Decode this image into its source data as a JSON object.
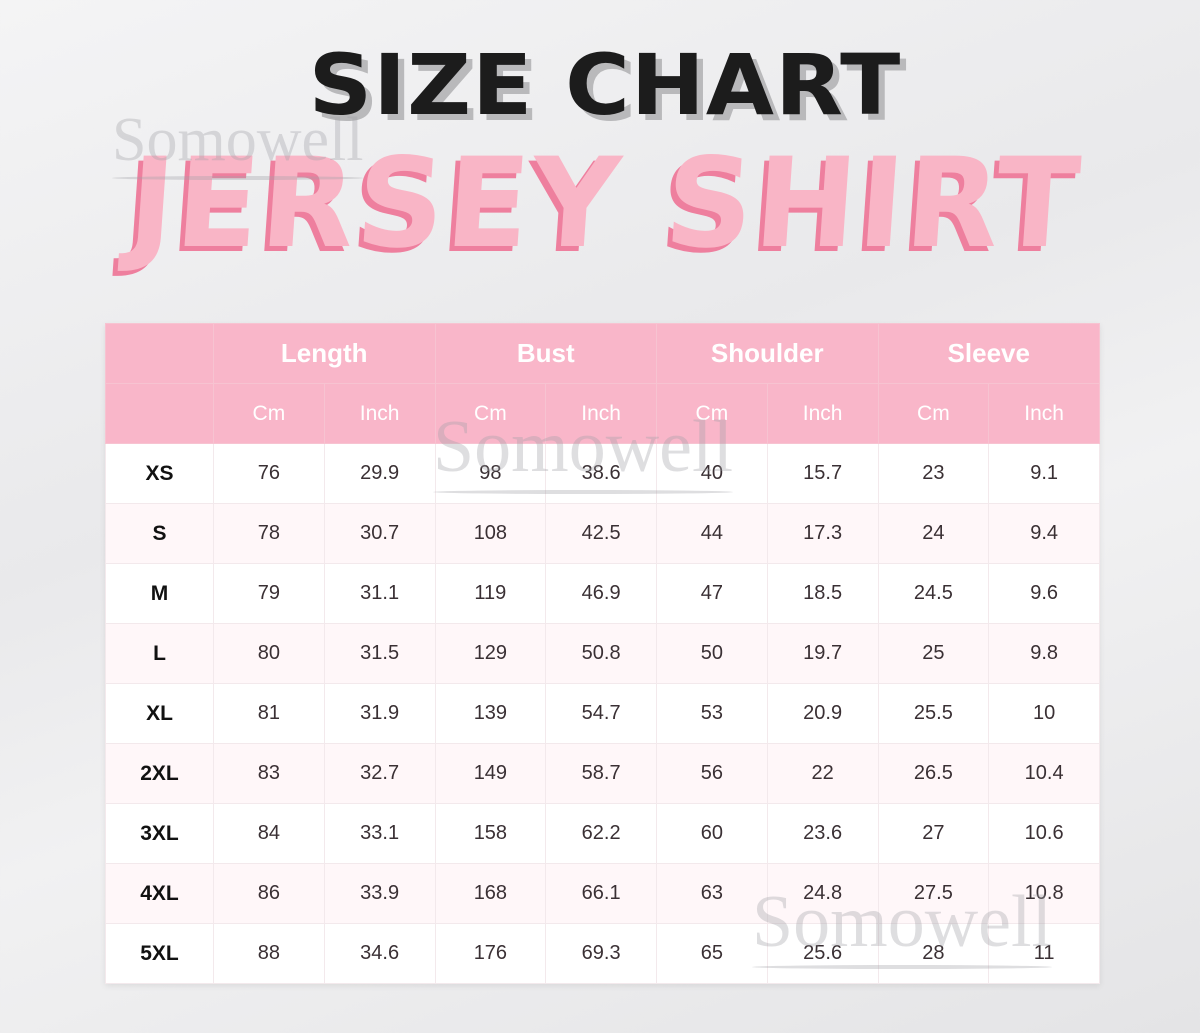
{
  "title": "SIZE CHART",
  "subtitle": "JERSEY SHIRT",
  "watermark": "Somowell",
  "colors": {
    "header_bg": "#f9b6c9",
    "title_pink": "#f9b5c6",
    "title_shadow": "#ee7f9e"
  },
  "chart_data": {
    "type": "table",
    "title": "SIZE CHART",
    "subtitle": "JERSEY SHIRT",
    "groups": [
      "Length",
      "Bust",
      "Shoulder",
      "Sleeve"
    ],
    "units": [
      "Cm",
      "Inch",
      "Cm",
      "Inch",
      "Cm",
      "Inch",
      "Cm",
      "Inch"
    ],
    "rows": [
      {
        "size": "XS",
        "values": [
          "76",
          "29.9",
          "98",
          "38.6",
          "40",
          "15.7",
          "23",
          "9.1"
        ]
      },
      {
        "size": "S",
        "values": [
          "78",
          "30.7",
          "108",
          "42.5",
          "44",
          "17.3",
          "24",
          "9.4"
        ]
      },
      {
        "size": "M",
        "values": [
          "79",
          "31.1",
          "119",
          "46.9",
          "47",
          "18.5",
          "24.5",
          "9.6"
        ]
      },
      {
        "size": "L",
        "values": [
          "80",
          "31.5",
          "129",
          "50.8",
          "50",
          "19.7",
          "25",
          "9.8"
        ]
      },
      {
        "size": "XL",
        "values": [
          "81",
          "31.9",
          "139",
          "54.7",
          "53",
          "20.9",
          "25.5",
          "10"
        ]
      },
      {
        "size": "2XL",
        "values": [
          "83",
          "32.7",
          "149",
          "58.7",
          "56",
          "22",
          "26.5",
          "10.4"
        ]
      },
      {
        "size": "3XL",
        "values": [
          "84",
          "33.1",
          "158",
          "62.2",
          "60",
          "23.6",
          "27",
          "10.6"
        ]
      },
      {
        "size": "4XL",
        "values": [
          "86",
          "33.9",
          "168",
          "66.1",
          "63",
          "24.8",
          "27.5",
          "10.8"
        ]
      },
      {
        "size": "5XL",
        "values": [
          "88",
          "34.6",
          "176",
          "69.3",
          "65",
          "25.6",
          "28",
          "11"
        ]
      }
    ]
  }
}
